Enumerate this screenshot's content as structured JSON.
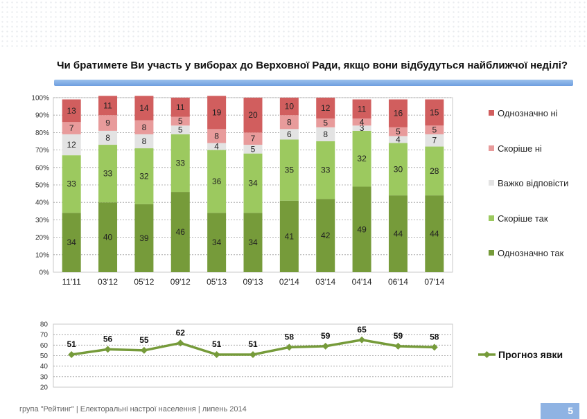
{
  "title": "Чи братимете Ви участь у виборах до Верховної Ради, якщо вони відбудуться найближчої неділі?",
  "footer": "група \"Рейтинг\"  |   Електоральні настрої населення  |  липень 2014",
  "page_number": "5",
  "colors": {
    "definitely_no": "#d15e5e",
    "rather_no": "#e89b9b",
    "hard_to_say": "#e3e3e3",
    "rather_yes": "#9cc95f",
    "definitely_yes": "#769b3a",
    "turnout_line": "#769b3a",
    "title_bar": "#8fb3e3"
  },
  "chart_data": [
    {
      "type": "bar",
      "stacked": true,
      "categories": [
        "11'11",
        "03'12",
        "05'12",
        "09'12",
        "05'13",
        "09'13",
        "02'14",
        "03'14",
        "04'14",
        "06'14",
        "07'14"
      ],
      "series": [
        {
          "name": "Однозначно так",
          "color": "#769b3a",
          "label_color": "#222222",
          "values": [
            34,
            40,
            39,
            46,
            34,
            34,
            41,
            42,
            49,
            44,
            44
          ]
        },
        {
          "name": "Скоріше так",
          "color": "#9cc95f",
          "label_color": "#222222",
          "values": [
            33,
            33,
            32,
            33,
            36,
            34,
            35,
            33,
            32,
            30,
            28
          ]
        },
        {
          "name": "Важко відповісти",
          "color": "#e3e3e3",
          "label_color": "#222222",
          "values": [
            12,
            8,
            8,
            5,
            4,
            5,
            6,
            8,
            3,
            4,
            7
          ]
        },
        {
          "name": "Скоріше ні",
          "color": "#e89b9b",
          "label_color": "#222222",
          "values": [
            7,
            9,
            8,
            5,
            8,
            7,
            8,
            5,
            4,
            5,
            5
          ]
        },
        {
          "name": "Однозначно ні",
          "color": "#d15e5e",
          "label_color": "#222222",
          "values": [
            13,
            11,
            14,
            11,
            19,
            20,
            10,
            12,
            11,
            16,
            15
          ]
        }
      ],
      "yticks": [
        "0%",
        "10%",
        "20%",
        "30%",
        "40%",
        "50%",
        "60%",
        "70%",
        "80%",
        "90%",
        "100%"
      ],
      "ylim": [
        0,
        100
      ],
      "legend_position": "right",
      "legend_order": [
        "Однозначно ні",
        "Скоріше ні",
        "Важко відповісти",
        "Скоріше так",
        "Однозначно так"
      ],
      "grid": true
    },
    {
      "type": "line",
      "categories": [
        "11'11",
        "03'12",
        "05'12",
        "09'12",
        "05'13",
        "09'13",
        "02'14",
        "03'14",
        "04'14",
        "06'14",
        "07'14"
      ],
      "series": [
        {
          "name": "Прогноз явки",
          "color": "#769b3a",
          "values": [
            51,
            56,
            55,
            62,
            51,
            51,
            58,
            59,
            65,
            59,
            58
          ]
        }
      ],
      "yticks": [
        "20",
        "30",
        "40",
        "50",
        "60",
        "70",
        "80"
      ],
      "ylim": [
        20,
        80
      ],
      "legend_position": "right",
      "grid": true
    }
  ]
}
